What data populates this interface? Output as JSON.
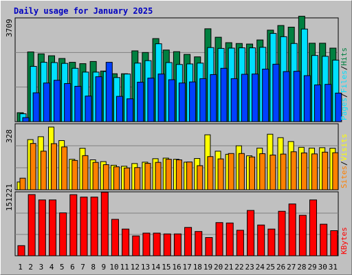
{
  "title": "Daily usage for January 2025",
  "colors": {
    "background": "#c0c0c0",
    "hits": "#008040",
    "files": "#00e0ff",
    "pages": "#0040ff",
    "visits": "#ffff00",
    "sites": "#ff8000",
    "kbytes": "#ff0000",
    "title": "#0000c0",
    "weekend_day": "#008040"
  },
  "chart_data": [
    {
      "type": "bar",
      "name": "hits-files-pages",
      "ymax_label": "3709",
      "ylim": [
        0,
        3709
      ],
      "legend": [
        "Pages",
        "Files",
        "Hits"
      ],
      "x": [
        1,
        2,
        3,
        4,
        5,
        6,
        7,
        8,
        9,
        10,
        11,
        12,
        13,
        14,
        15,
        16,
        17,
        18,
        19,
        20,
        21,
        22,
        23,
        24,
        25,
        26,
        27,
        28,
        29,
        30,
        31
      ],
      "series": [
        {
          "name": "Hits",
          "values": [
            330,
            2560,
            2490,
            2420,
            2320,
            2180,
            2130,
            2210,
            1860,
            1760,
            1760,
            2600,
            2540,
            3050,
            2630,
            2570,
            2470,
            2380,
            3410,
            3100,
            2900,
            2870,
            2850,
            3000,
            3360,
            3530,
            3470,
            3870,
            2880,
            2880,
            2700
          ]
        },
        {
          "name": "Files",
          "values": [
            290,
            2030,
            2180,
            2170,
            2140,
            1960,
            1820,
            1820,
            1840,
            1620,
            1750,
            2150,
            2240,
            2860,
            2170,
            2100,
            2120,
            2150,
            2720,
            2690,
            2700,
            2710,
            2710,
            2730,
            3240,
            3120,
            2870,
            3400,
            2430,
            2400,
            2260
          ]
        },
        {
          "name": "Pages",
          "values": [
            150,
            1060,
            1420,
            1520,
            1400,
            1300,
            940,
            1650,
            2180,
            930,
            840,
            1450,
            1600,
            1750,
            1540,
            1420,
            1460,
            1580,
            1730,
            1960,
            1580,
            1740,
            1750,
            1930,
            2110,
            1840,
            1850,
            1690,
            1350,
            1370,
            1050
          ]
        }
      ]
    },
    {
      "type": "bar",
      "name": "visits-sites",
      "ymax_label": "328",
      "ylim": [
        0,
        328
      ],
      "legend": [
        "Sites",
        "Visits"
      ],
      "x": [
        1,
        2,
        3,
        4,
        5,
        6,
        7,
        8,
        9,
        10,
        11,
        12,
        13,
        14,
        15,
        16,
        17,
        18,
        19,
        20,
        21,
        22,
        23,
        24,
        25,
        26,
        27,
        28,
        29,
        30,
        31
      ],
      "series": [
        {
          "name": "Visits",
          "values": [
            40,
            260,
            275,
            325,
            255,
            158,
            215,
            155,
            146,
            127,
            122,
            136,
            143,
            161,
            164,
            158,
            143,
            162,
            285,
            200,
            184,
            228,
            176,
            216,
            288,
            270,
            250,
            220,
            216,
            218,
            215
          ]
        },
        {
          "name": "Sites",
          "values": [
            60,
            240,
            200,
            239,
            222,
            152,
            177,
            142,
            130,
            119,
            113,
            115,
            137,
            142,
            158,
            155,
            144,
            125,
            172,
            160,
            188,
            188,
            170,
            187,
            180,
            185,
            197,
            191,
            186,
            195,
            192
          ]
        }
      ]
    },
    {
      "type": "bar",
      "name": "kbytes",
      "ymax_label": "151221",
      "ylim": [
        0,
        151221
      ],
      "legend": [
        "KBytes"
      ],
      "x": [
        1,
        2,
        3,
        4,
        5,
        6,
        7,
        8,
        9,
        10,
        11,
        12,
        13,
        14,
        15,
        16,
        17,
        18,
        19,
        20,
        21,
        22,
        23,
        24,
        25,
        26,
        27,
        28,
        29,
        30,
        31
      ],
      "series": [
        {
          "name": "KBytes",
          "values": [
            25000,
            151221,
            138000,
            138000,
            106000,
            151000,
            145000,
            145000,
            157000,
            90000,
            66000,
            49000,
            56000,
            56000,
            54000,
            54000,
            70000,
            60000,
            45000,
            82000,
            81000,
            63000,
            112000,
            76000,
            66000,
            110000,
            128000,
            100000,
            138000,
            78000,
            62000
          ]
        }
      ]
    }
  ],
  "x_labels": [
    "1",
    "2",
    "3",
    "4",
    "5",
    "6",
    "7",
    "8",
    "9",
    "10",
    "11",
    "12",
    "13",
    "14",
    "15",
    "16",
    "17",
    "18",
    "19",
    "20",
    "21",
    "22",
    "23",
    "24",
    "25",
    "26",
    "27",
    "28",
    "29",
    "30",
    "31"
  ],
  "weekend_days": [
    4,
    5,
    11,
    12,
    18,
    19,
    25,
    26
  ]
}
